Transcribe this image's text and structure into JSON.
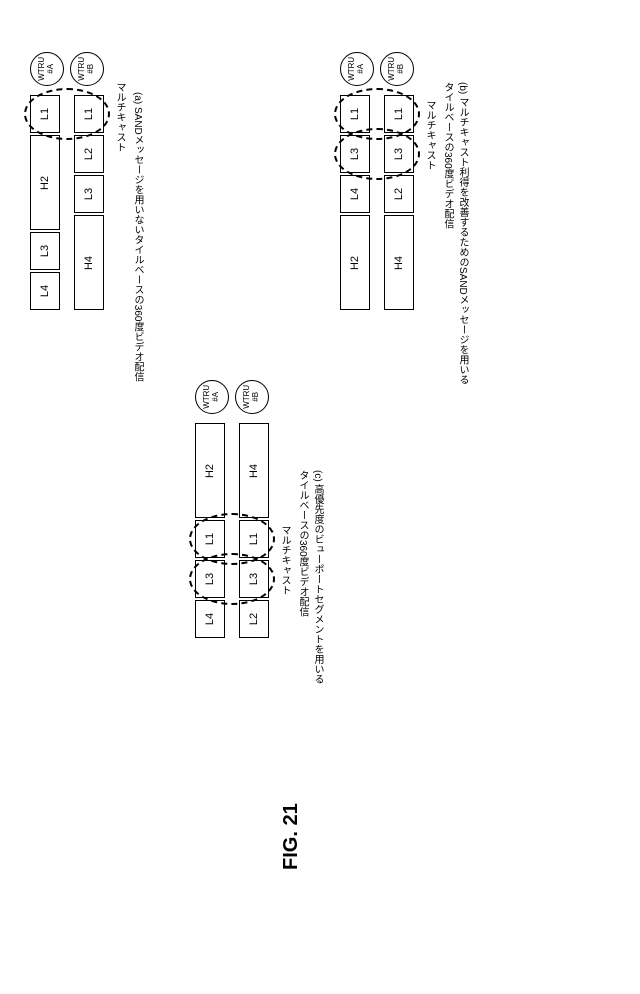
{
  "figure_label": "FIG. 21",
  "wtru_a": "WTRU\n#A",
  "wtru_b": "WTRU\n#B",
  "multicast_label": "マルチキャスト",
  "panel_a": {
    "caption": "(a) SANDメッセージを用いないタイルベースの360度ビデオ配信",
    "row_a": [
      "L1",
      "H2",
      "L3",
      "L4"
    ],
    "row_a_widths": [
      38,
      95,
      38,
      38
    ],
    "row_b": [
      "L1",
      "L2",
      "L3",
      "H4",
      ""
    ],
    "row_b_widths": [
      38,
      38,
      38,
      95,
      0
    ]
  },
  "panel_b": {
    "caption": "(b) マルチキャスト利得を改善するためのSANDメッセージを用いる\nタイルベースの360度ビデオ配信",
    "row_a": [
      "L1",
      "L3",
      "L4",
      "H2"
    ],
    "row_a_widths": [
      38,
      38,
      38,
      95
    ],
    "row_b": [
      "L1",
      "L3",
      "L2",
      "H4"
    ],
    "row_b_widths": [
      38,
      38,
      38,
      95
    ]
  },
  "panel_c": {
    "caption": "(c) 高優先度のビューポートセグメントを用いる\nタイルベースの360度ビデオ配信",
    "row_a": [
      "H2",
      "L1",
      "L3",
      "L4"
    ],
    "row_a_widths": [
      95,
      38,
      38,
      38
    ],
    "row_b": [
      "H4",
      "L1",
      "L3",
      "L2"
    ],
    "row_b_widths": [
      95,
      38,
      38,
      38
    ]
  },
  "colors": {
    "stroke": "#000000",
    "bg": "#ffffff"
  }
}
